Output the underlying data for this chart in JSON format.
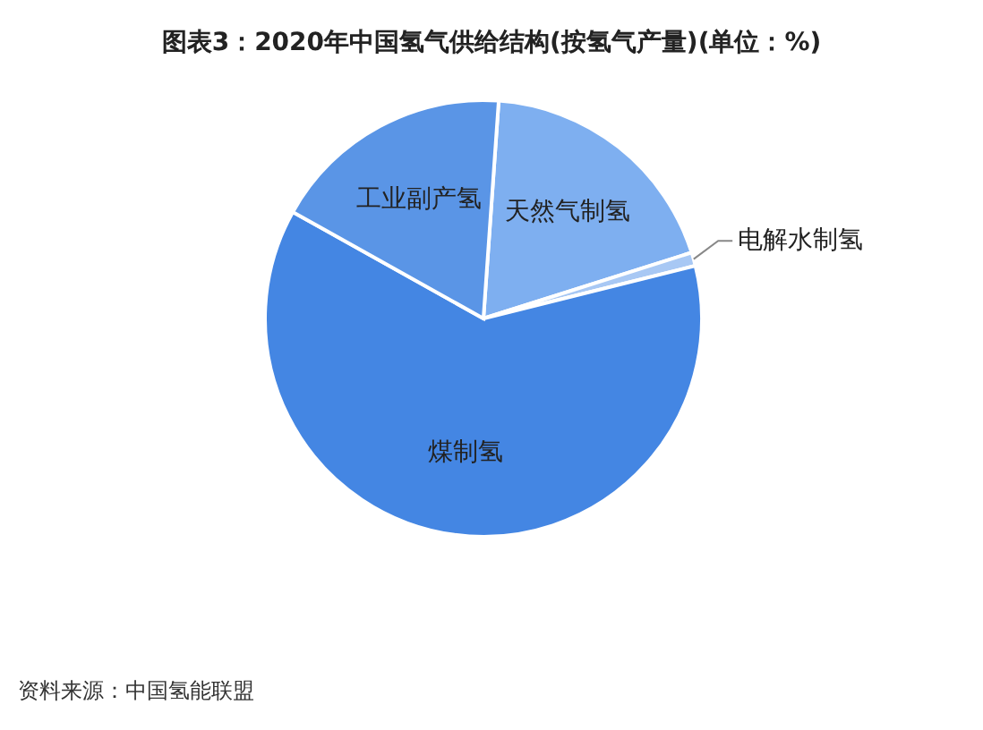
{
  "chart_data": {
    "type": "pie",
    "title": "图表3：2020年中国氢气供给结构(按氢气产量)(单位：%)",
    "categories": [
      "天然气制氢",
      "电解水制氢",
      "煤制氢",
      "工业副产氢"
    ],
    "values": [
      19,
      1,
      62,
      18
    ],
    "colors": [
      "#7eaff0",
      "#a8c8f4",
      "#4486e3",
      "#5a95e6"
    ],
    "annotations": [
      "资料来源：中国氢能联盟"
    ]
  }
}
